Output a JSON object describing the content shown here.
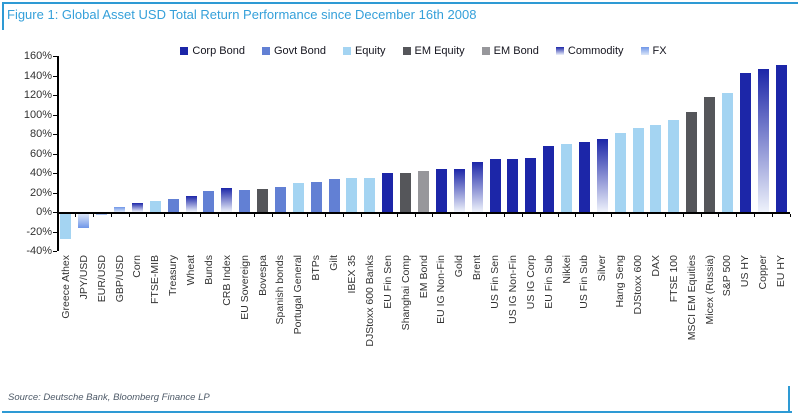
{
  "figure": {
    "title": "Figure 1: Global Asset USD Total Return Performance since December 16th 2008",
    "source": "Source: Deutsche Bank, Bloomberg Finance LP",
    "accent_blue": "#2e9ad4",
    "title_color": "#35a0da"
  },
  "chart_data": {
    "type": "bar",
    "title": "Figure 1: Global Asset USD Total Return Performance since December 16th 2008",
    "xlabel": "",
    "ylabel": "",
    "ylim": [
      -40,
      160
    ],
    "y_tick_step": 20,
    "y_ticks": [
      "160%",
      "140%",
      "120%",
      "100%",
      "80%",
      "60%",
      "40%",
      "20%",
      "0%",
      "-20%",
      "-40%"
    ],
    "grid": false,
    "legend_position": "top",
    "legend": [
      {
        "label": "Corp Bond",
        "class": "corp_bond"
      },
      {
        "label": "Govt Bond",
        "class": "govt_bond"
      },
      {
        "label": "Equity",
        "class": "equity"
      },
      {
        "label": "EM Equity",
        "class": "em_equity"
      },
      {
        "label": "EM Bond",
        "class": "em_bond"
      },
      {
        "label": "Commodity",
        "class": "commodity"
      },
      {
        "label": "FX",
        "class": "fx"
      }
    ],
    "colors": {
      "corp_bond": "#1c26a8",
      "govt_bond": "#6280d4",
      "equity": "#a4d4f2",
      "em_equity": "#55565a",
      "em_bond": "#97979b",
      "commodity_top": "#1c26a8",
      "commodity_bottom": "#eef2fb",
      "fx_tip": "#6f96e8",
      "fx_base": "#dbe6f8"
    },
    "points": [
      {
        "label": "Greece Athex",
        "value": -26,
        "class": "equity"
      },
      {
        "label": "JPY/USD",
        "value": -15,
        "class": "fx"
      },
      {
        "label": "EUR/USD",
        "value": -2,
        "class": "fx"
      },
      {
        "label": "GBP/USD",
        "value": 5,
        "class": "fx"
      },
      {
        "label": "Corn",
        "value": 9,
        "class": "commodity"
      },
      {
        "label": "FTSE-MIB",
        "value": 11,
        "class": "equity"
      },
      {
        "label": "Treasury",
        "value": 13,
        "class": "govt_bond"
      },
      {
        "label": "Wheat",
        "value": 16,
        "class": "commodity"
      },
      {
        "label": "Bunds",
        "value": 22,
        "class": "govt_bond"
      },
      {
        "label": "CRB Index",
        "value": 25,
        "class": "commodity"
      },
      {
        "label": "EU Sovereign",
        "value": 23,
        "class": "govt_bond"
      },
      {
        "label": "Bovespa",
        "value": 24,
        "class": "em_equity"
      },
      {
        "label": "Spanish bonds",
        "value": 26,
        "class": "govt_bond"
      },
      {
        "label": "Portugal General",
        "value": 30,
        "class": "equity"
      },
      {
        "label": "BTPs",
        "value": 31,
        "class": "govt_bond"
      },
      {
        "label": "Gilt",
        "value": 34,
        "class": "govt_bond"
      },
      {
        "label": "IBEX 35",
        "value": 35,
        "class": "equity"
      },
      {
        "label": "DJStoxx 600 Banks",
        "value": 35,
        "class": "equity"
      },
      {
        "label": "EU Fin Sen",
        "value": 40,
        "class": "corp_bond"
      },
      {
        "label": "Shanghai Comp",
        "value": 40,
        "class": "em_equity"
      },
      {
        "label": "EM Bond",
        "value": 42,
        "class": "em_bond"
      },
      {
        "label": "EU IG Non-Fin",
        "value": 44,
        "class": "corp_bond"
      },
      {
        "label": "Gold",
        "value": 44,
        "class": "commodity"
      },
      {
        "label": "Brent",
        "value": 51,
        "class": "commodity"
      },
      {
        "label": "US Fin Sen",
        "value": 54,
        "class": "corp_bond"
      },
      {
        "label": "US IG Non-Fin",
        "value": 54,
        "class": "corp_bond"
      },
      {
        "label": "US IG Corp",
        "value": 55,
        "class": "corp_bond"
      },
      {
        "label": "EU Fin Sub",
        "value": 68,
        "class": "corp_bond"
      },
      {
        "label": "Nikkei",
        "value": 70,
        "class": "equity"
      },
      {
        "label": "US Fin Sub",
        "value": 72,
        "class": "corp_bond"
      },
      {
        "label": "Silver",
        "value": 75,
        "class": "commodity"
      },
      {
        "label": "Hang Seng",
        "value": 81,
        "class": "equity"
      },
      {
        "label": "DJStoxx 600",
        "value": 86,
        "class": "equity"
      },
      {
        "label": "DAX",
        "value": 89,
        "class": "equity"
      },
      {
        "label": "FTSE 100",
        "value": 94,
        "class": "equity"
      },
      {
        "label": "MSCI EM Equities",
        "value": 103,
        "class": "em_equity"
      },
      {
        "label": "Micex (Russia)",
        "value": 118,
        "class": "em_equity"
      },
      {
        "label": "S&P 500",
        "value": 122,
        "class": "equity"
      },
      {
        "label": "US HY",
        "value": 143,
        "class": "corp_bond"
      },
      {
        "label": "Copper",
        "value": 147,
        "class": "commodity"
      },
      {
        "label": "EU HY",
        "value": 151,
        "class": "corp_bond"
      }
    ]
  }
}
